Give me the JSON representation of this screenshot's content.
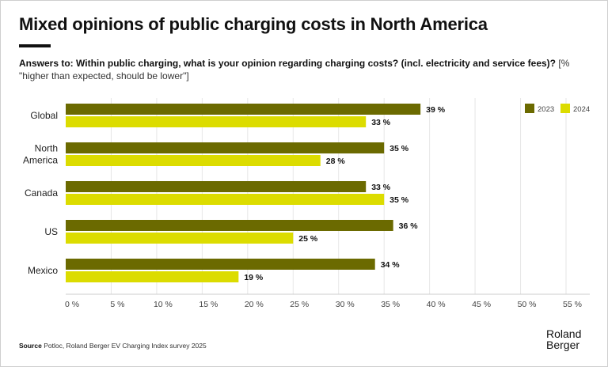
{
  "title": "Mixed opinions of public charging costs in North America",
  "subtitle_bold": "Answers to: Within public charging, what is your opinion regarding charging costs? (incl. electricity and service fees)?",
  "subtitle_light": "[% \"higher than expected, should be lower\"]",
  "source_label": "Source",
  "source_text": "Potloc, Roland Berger EV Charging Index survey 2025",
  "logo_line1": "Roland",
  "logo_line2": "Berger",
  "colors": {
    "2023": "#6b6a00",
    "2024": "#dcdc00"
  },
  "chart_data": {
    "type": "bar",
    "orientation": "horizontal",
    "title": "Mixed opinions of public charging costs in North America",
    "xlabel": "",
    "ylabel": "",
    "categories": [
      "Global",
      "North America",
      "Canada",
      "US",
      "Mexico"
    ],
    "category_lines": [
      [
        "Global"
      ],
      [
        "North",
        "America"
      ],
      [
        "Canada"
      ],
      [
        "US"
      ],
      [
        "Mexico"
      ]
    ],
    "series": [
      {
        "name": "2023",
        "values": [
          39,
          35,
          33,
          36,
          34
        ]
      },
      {
        "name": "2024",
        "values": [
          33,
          28,
          35,
          25,
          19
        ]
      }
    ],
    "xlim": [
      0,
      55
    ],
    "xticks": [
      0,
      5,
      10,
      15,
      20,
      25,
      30,
      35,
      40,
      45,
      50,
      55
    ],
    "xtick_labels": [
      "0 %",
      "5 %",
      "10 %",
      "15 %",
      "20 %",
      "25 %",
      "30 %",
      "35 %",
      "40 %",
      "45 %",
      "50 %",
      "55 %"
    ],
    "value_suffix": " %",
    "grid": true,
    "legend": "top-right"
  }
}
